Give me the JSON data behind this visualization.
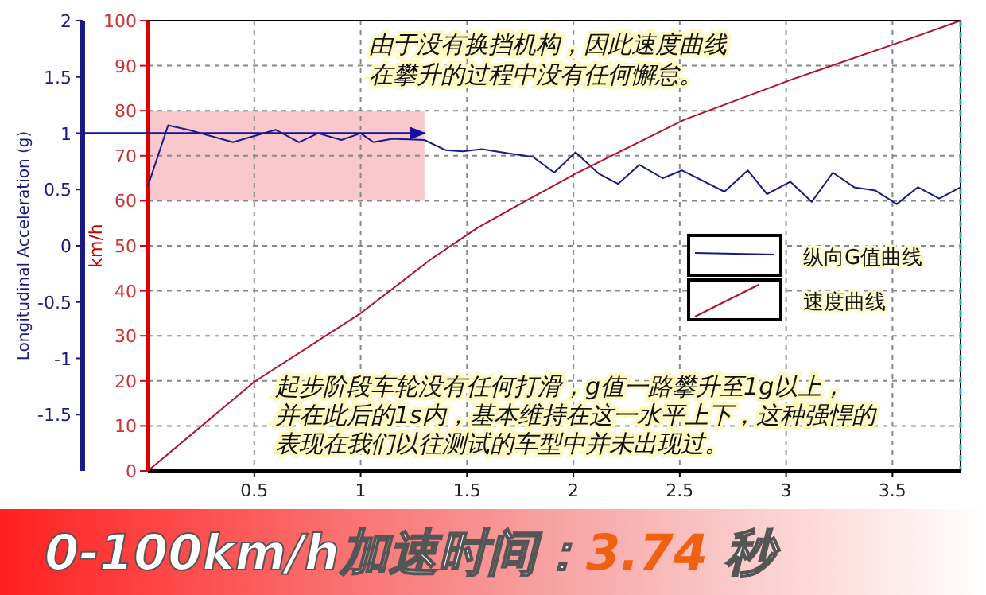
{
  "chart_data": {
    "type": "line",
    "ylabel": "km/h",
    "y2label": "Longitudinal Acceleration (g)",
    "xlim": [
      0,
      3.82
    ],
    "xticks": [
      0.5,
      1,
      1.5,
      2,
      2.5,
      3,
      3.5
    ],
    "ylim": [
      0,
      100
    ],
    "yticks": [
      0,
      10,
      20,
      30,
      40,
      50,
      60,
      70,
      80,
      90,
      100
    ],
    "y2lim": [
      -2,
      2
    ],
    "y2ticks": [
      -1.5,
      -1,
      -0.5,
      0,
      0.5,
      1,
      1.5,
      2
    ],
    "grid": true,
    "legend": "right",
    "series": [
      {
        "name": "纵向G值曲线",
        "color": "#1a1a80",
        "axis": "y2",
        "x": [
          0,
          0.095,
          0.19,
          0.4,
          0.6,
          0.71,
          0.8,
          0.91,
          1.0,
          1.06,
          1.15,
          1.3,
          1.4,
          1.48,
          1.57,
          1.7,
          1.81,
          1.91,
          2.01,
          2.12,
          2.21,
          2.31,
          2.42,
          2.51,
          2.71,
          2.82,
          2.91,
          3.02,
          3.12,
          3.22,
          3.32,
          3.42,
          3.52,
          3.62,
          3.72,
          3.82
        ],
        "values": [
          0.53,
          1.07,
          1.03,
          0.92,
          1.03,
          0.92,
          1.0,
          0.94,
          1.0,
          0.92,
          0.95,
          0.94,
          0.85,
          0.84,
          0.86,
          0.82,
          0.79,
          0.65,
          0.83,
          0.64,
          0.55,
          0.72,
          0.6,
          0.67,
          0.48,
          0.67,
          0.46,
          0.57,
          0.39,
          0.65,
          0.52,
          0.49,
          0.37,
          0.52,
          0.42,
          0.52
        ]
      },
      {
        "name": "速度曲线",
        "color": "#b01030",
        "x": [
          0,
          0.5,
          1.0,
          1.33,
          1.55,
          1.7,
          2.01,
          2.52,
          3.03,
          3.52,
          3.82
        ],
        "values": [
          0,
          19.8,
          35,
          47,
          54,
          58,
          66,
          78,
          87,
          95,
          100
        ]
      }
    ],
    "bands": [
      {
        "axis": "y",
        "from": 60,
        "to": 80,
        "color": "#f8c8cc"
      }
    ],
    "ref_lines": [
      {
        "axis": "y2",
        "value": 1,
        "color": "#1010a0"
      }
    ],
    "annotations": [
      "由于没有换挡机构，因此速度曲线",
      "在攀升的过程中没有任何懈怠。",
      "起步阶段车轮没有任何打滑，g值一路攀升至1g以上，",
      "并在此后的1s内，基本维持在这一水平上下，这种强悍的",
      "表现在我们以往测试的车型中并未出现过。",
      "0-100km/h加速时间：",
      "3.74",
      "秒"
    ]
  }
}
